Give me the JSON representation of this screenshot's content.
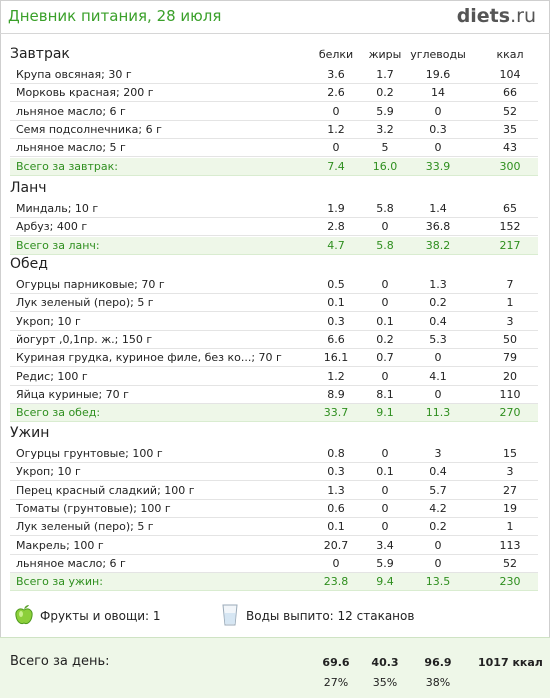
{
  "header": {
    "title": "Дневник питания, 28 июля",
    "brand_name": "diets",
    "brand_tld": ".ru"
  },
  "columns": {
    "protein": "белки",
    "fat": "жиры",
    "carbs": "углеводы",
    "kcal": "ккал"
  },
  "sections": [
    {
      "title": "Завтрак",
      "items": [
        {
          "name": "Крупа овсяная; 30 г",
          "protein": "3.6",
          "fat": "1.7",
          "carbs": "19.6",
          "kcal": "104"
        },
        {
          "name": "Морковь красная; 200 г",
          "protein": "2.6",
          "fat": "0.2",
          "carbs": "14",
          "kcal": "66"
        },
        {
          "name": "льняное масло; 6 г",
          "protein": "0",
          "fat": "5.9",
          "carbs": "0",
          "kcal": "52"
        },
        {
          "name": "Семя подсолнечника; 6 г",
          "protein": "1.2",
          "fat": "3.2",
          "carbs": "0.3",
          "kcal": "35"
        },
        {
          "name": "льняное масло; 5 г",
          "protein": "0",
          "fat": "5",
          "carbs": "0",
          "kcal": "43"
        }
      ],
      "total": {
        "name": "Всего за завтрак:",
        "protein": "7.4",
        "fat": "16.0",
        "carbs": "33.9",
        "kcal": "300"
      }
    },
    {
      "title": "Ланч",
      "items": [
        {
          "name": "Миндаль; 10 г",
          "protein": "1.9",
          "fat": "5.8",
          "carbs": "1.4",
          "kcal": "65"
        },
        {
          "name": "Арбуз; 400 г",
          "protein": "2.8",
          "fat": "0",
          "carbs": "36.8",
          "kcal": "152"
        }
      ],
      "total": {
        "name": "Всего за ланч:",
        "protein": "4.7",
        "fat": "5.8",
        "carbs": "38.2",
        "kcal": "217"
      }
    },
    {
      "title": "Обед",
      "items": [
        {
          "name": "Огурцы парниковые; 70 г",
          "protein": "0.5",
          "fat": "0",
          "carbs": "1.3",
          "kcal": "7"
        },
        {
          "name": "Лук зеленый (перо); 5 г",
          "protein": "0.1",
          "fat": "0",
          "carbs": "0.2",
          "kcal": "1"
        },
        {
          "name": "Укроп; 10 г",
          "protein": "0.3",
          "fat": "0.1",
          "carbs": "0.4",
          "kcal": "3"
        },
        {
          "name": "йогурт ,0,1пр. ж.; 150 г",
          "protein": "6.6",
          "fat": "0.2",
          "carbs": "5.3",
          "kcal": "50"
        },
        {
          "name": "Куриная грудка, куриное филе, без ко...; 70 г",
          "protein": "16.1",
          "fat": "0.7",
          "carbs": "0",
          "kcal": "79"
        },
        {
          "name": "Редис; 100 г",
          "protein": "1.2",
          "fat": "0",
          "carbs": "4.1",
          "kcal": "20"
        },
        {
          "name": "Яйца куриные; 70 г",
          "protein": "8.9",
          "fat": "8.1",
          "carbs": "0",
          "kcal": "110"
        }
      ],
      "total": {
        "name": "Всего за обед:",
        "protein": "33.7",
        "fat": "9.1",
        "carbs": "11.3",
        "kcal": "270"
      }
    },
    {
      "title": "Ужин",
      "items": [
        {
          "name": "Огурцы грунтовые; 100 г",
          "protein": "0.8",
          "fat": "0",
          "carbs": "3",
          "kcal": "15"
        },
        {
          "name": "Укроп; 10 г",
          "protein": "0.3",
          "fat": "0.1",
          "carbs": "0.4",
          "kcal": "3"
        },
        {
          "name": "Перец красный сладкий; 100 г",
          "protein": "1.3",
          "fat": "0",
          "carbs": "5.7",
          "kcal": "27"
        },
        {
          "name": "Томаты (грунтовые); 100 г",
          "protein": "0.6",
          "fat": "0",
          "carbs": "4.2",
          "kcal": "19"
        },
        {
          "name": "Лук зеленый (перо); 5 г",
          "protein": "0.1",
          "fat": "0",
          "carbs": "0.2",
          "kcal": "1"
        },
        {
          "name": "Макрель; 100 г",
          "protein": "20.7",
          "fat": "3.4",
          "carbs": "0",
          "kcal": "113"
        },
        {
          "name": "льняное масло; 6 г",
          "protein": "0",
          "fat": "5.9",
          "carbs": "0",
          "kcal": "52"
        }
      ],
      "total": {
        "name": "Всего за ужин:",
        "protein": "23.8",
        "fat": "9.4",
        "carbs": "13.5",
        "kcal": "230"
      }
    }
  ],
  "summary": {
    "fruit_icon": "apple-icon",
    "fruits_label": "Фрукты и овощи: 1",
    "water_icon": "glass-icon",
    "water_label": "Воды выпито: 12 стаканов"
  },
  "day_total": {
    "label": "Всего за день:",
    "protein": "69.6",
    "fat": "40.3",
    "carbs": "96.9",
    "kcal": "1017 ккал",
    "protein_pct": "27%",
    "fat_pct": "35%",
    "carbs_pct": "38%"
  },
  "colors": {
    "accent_green": "#3aa02a",
    "total_bg": "#eef7e8"
  }
}
